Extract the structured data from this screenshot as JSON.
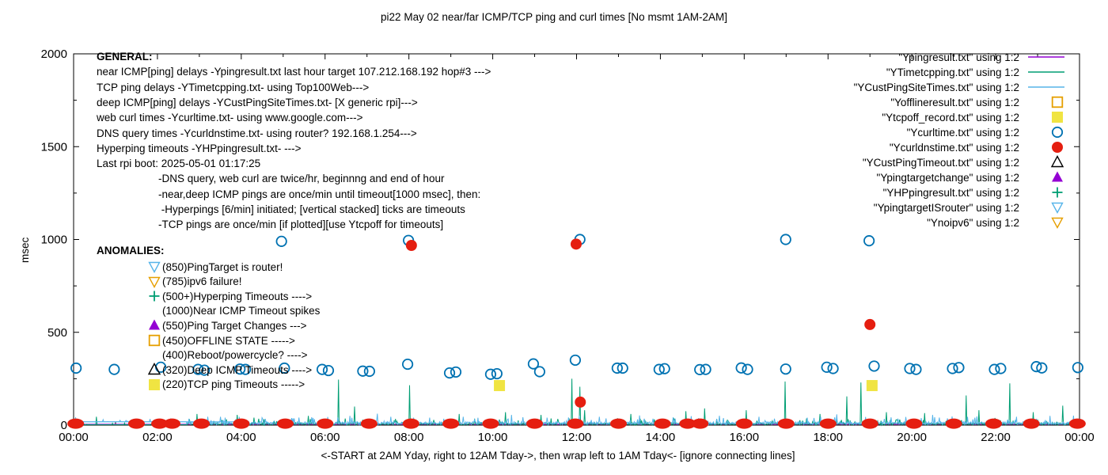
{
  "title": "pi22 May 02  near/far ICMP/TCP ping and curl times [No msmt 1AM-2AM]",
  "ylabel": "msec",
  "xlabel": "<-START at 2AM Yday, right to 12AM Tday->, then wrap left to 1AM Tday<- [ignore connecting lines]",
  "general": {
    "lines": [
      {
        "text": "GENERAL:",
        "bold": true,
        "indent": false
      },
      {
        "text": "near ICMP[ping] delays -Ypingresult.txt last hour target 107.212.168.192 hop#3 --->",
        "bold": false,
        "indent": false
      },
      {
        "text": "TCP ping delays -YTimetcpping.txt- using Top100Web--->",
        "bold": false,
        "indent": false
      },
      {
        "text": "deep ICMP[ping] delays -YCustPingSiteTimes.txt- [X generic rpi]--->",
        "bold": false,
        "indent": false
      },
      {
        "text": "web curl times -Ycurltime.txt- using www.google.com--->",
        "bold": false,
        "indent": false
      },
      {
        "text": "DNS query times -Ycurldnstime.txt- using router? 192.168.1.254--->",
        "bold": false,
        "indent": false
      },
      {
        "text": "Hyperping timeouts -YHPpingresult.txt- --->",
        "bold": false,
        "indent": false
      },
      {
        "text": "Last rpi boot: 2025-05-01 01:17:25",
        "bold": false,
        "indent": false
      },
      {
        "text": "-DNS query, web curl are twice/hr, beginnng and end of hour",
        "bold": false,
        "indent": true
      },
      {
        "text": "-near,deep ICMP pings are once/min until timeout[1000 msec], then:",
        "bold": false,
        "indent": true
      },
      {
        "text": " -Hyperpings [6/min] initiated; [vertical stacked] ticks are timeouts",
        "bold": false,
        "indent": true
      },
      {
        "text": "-TCP pings are once/min [if plotted][use Ytcpoff for timeouts]",
        "bold": false,
        "indent": true
      }
    ]
  },
  "anomalies": {
    "heading": "ANOMALIES:",
    "rows": [
      {
        "marker": "tri-down-open",
        "color": "#56b4e9",
        "text": "(850)PingTarget is router!"
      },
      {
        "marker": "tri-down-open",
        "color": "#e69f00",
        "text": "(785)ipv6 failure!"
      },
      {
        "marker": "plus",
        "color": "#009e73",
        "text": "(500+)Hyperping Timeouts ---->"
      },
      {
        "marker": "none",
        "color": "",
        "text": "(1000)Near ICMP Timeout spikes"
      },
      {
        "marker": "tri-up-filled",
        "color": "#9400d3",
        "text": "(550)Ping Target Changes --->"
      },
      {
        "marker": "square-open",
        "color": "#e69f00",
        "text": "(450)OFFLINE STATE ----->"
      },
      {
        "marker": "none",
        "color": "",
        "text": "(400)Reboot/powercycle? ---->"
      },
      {
        "marker": "tri-up-open",
        "color": "#000000",
        "text": "(320)Deep ICMP Timeouts ---->"
      },
      {
        "marker": "square-filled",
        "color": "#f0e442",
        "text": "(220)TCP ping Timeouts ----->"
      }
    ]
  },
  "legend": [
    {
      "label": "\"Ypingresult.txt\" using 1:2",
      "sample": "line",
      "color": "#9400d3"
    },
    {
      "label": "\"YTimetcpping.txt\" using 1:2",
      "sample": "line",
      "color": "#009e73"
    },
    {
      "label": "\"YCustPingSiteTimes.txt\" using 1:2",
      "sample": "line",
      "color": "#56b4e9"
    },
    {
      "label": "\"Yofflineresult.txt\" using 1:2",
      "sample": "square-open",
      "color": "#e69f00"
    },
    {
      "label": "\"Ytcpoff_record.txt\" using 1:2",
      "sample": "square-filled",
      "color": "#f0e442"
    },
    {
      "label": "\"Ycurltime.txt\" using 1:2",
      "sample": "circle-open",
      "color": "#0072b2"
    },
    {
      "label": "\"Ycurldnstime.txt\" using 1:2",
      "sample": "circle-filled",
      "color": "#e51e10"
    },
    {
      "label": "\"YCustPingTimeout.txt\" using 1:2",
      "sample": "tri-up-open",
      "color": "#000000"
    },
    {
      "label": "\"Ypingtargetchange\" using 1:2",
      "sample": "tri-up-filled",
      "color": "#9400d3"
    },
    {
      "label": "\"YHPpingresult.txt\" using 1:2",
      "sample": "plus",
      "color": "#009e73"
    },
    {
      "label": "\"YpingtargetISrouter\" using 1:2",
      "sample": "tri-down-open",
      "color": "#56b4e9"
    },
    {
      "label": "\"Ynoipv6\" using 1:2",
      "sample": "tri-down-open",
      "color": "#e69f00"
    }
  ],
  "chart_data": {
    "type": "line",
    "title": "pi22 May 02  near/far ICMP/TCP ping and curl times [No msmt 1AM-2AM]",
    "xlabel": "<-START at 2AM Yday, right to 12AM Tday->, then wrap left to 1AM Tday<- [ignore connecting lines]",
    "ylabel": "msec",
    "xlim": [
      0,
      24
    ],
    "ylim": [
      0,
      2000
    ],
    "grid": false,
    "legend_position": "top-right",
    "x_tick_hours": [
      0,
      2,
      4,
      6,
      8,
      10,
      12,
      14,
      16,
      18,
      20,
      22,
      24
    ],
    "x_tick_labels": [
      "00:00",
      "02:00",
      "04:00",
      "06:00",
      "08:00",
      "10:00",
      "12:00",
      "14:00",
      "16:00",
      "18:00",
      "20:00",
      "22:00",
      "00:00"
    ],
    "y_ticks": [
      0,
      500,
      1000,
      1500,
      2000
    ],
    "series": [
      {
        "name": "Ypingresult near ICMP ping delay",
        "color": "#9400d3",
        "style": "line-flat",
        "value": 5
      },
      {
        "name": "YTimetcpping TCP ping delay",
        "color": "#009e73",
        "style": "noise",
        "base": 1,
        "amp": 12,
        "gap": [
          0.25,
          2.7
        ],
        "gap_value": 2,
        "spikes": [
          [
            0.55,
            45
          ],
          [
            2.95,
            60
          ],
          [
            3.9,
            55
          ],
          [
            4.3,
            40
          ],
          [
            5.6,
            50
          ],
          [
            6.32,
            245
          ],
          [
            6.7,
            100
          ],
          [
            8.01,
            215
          ],
          [
            9.2,
            60
          ],
          [
            10.3,
            70
          ],
          [
            11.15,
            55
          ],
          [
            11.88,
            250
          ],
          [
            12.08,
            207
          ],
          [
            12.2,
            80
          ],
          [
            13.3,
            60
          ],
          [
            14.6,
            75
          ],
          [
            15.05,
            90
          ],
          [
            16.05,
            80
          ],
          [
            16.97,
            235
          ],
          [
            17.8,
            60
          ],
          [
            18.45,
            155
          ],
          [
            18.78,
            230
          ],
          [
            19.4,
            70
          ],
          [
            20.3,
            65
          ],
          [
            21.3,
            160
          ],
          [
            21.6,
            80
          ],
          [
            22.33,
            225
          ],
          [
            22.9,
            70
          ],
          [
            23.6,
            105
          ]
        ]
      },
      {
        "name": "YCustPingSiteTimes deep ICMP ping delay",
        "color": "#56b4e9",
        "style": "noise",
        "base": 3,
        "amp": 16,
        "gap": [
          0.25,
          2.7
        ],
        "gap_value": 18,
        "connect_line": {
          "from": 0.15,
          "to": 4.0,
          "value": 18
        },
        "spikes": [
          [
            3.2,
            45
          ],
          [
            4.5,
            40
          ],
          [
            5.2,
            38
          ],
          [
            6.6,
            50
          ],
          [
            7.25,
            62
          ],
          [
            8.5,
            40
          ],
          [
            9.3,
            45
          ],
          [
            10.45,
            55
          ],
          [
            11.3,
            40
          ],
          [
            12.55,
            45
          ],
          [
            13.5,
            52
          ],
          [
            14.3,
            42
          ],
          [
            15.5,
            38
          ],
          [
            16.35,
            45
          ],
          [
            17.5,
            40
          ],
          [
            18.2,
            58
          ],
          [
            19.5,
            42
          ],
          [
            20.5,
            55
          ],
          [
            21.5,
            40
          ],
          [
            22.5,
            45
          ],
          [
            23.3,
            50
          ]
        ]
      },
      {
        "name": "Ytcpoff_record TCP ping timeouts",
        "color": "#f0e442",
        "style": "points",
        "marker": "square-filled",
        "points": [
          [
            10.16,
            213
          ],
          [
            19.05,
            213
          ]
        ]
      },
      {
        "name": "Ycurltime web curl times",
        "color": "#0072b2",
        "style": "points",
        "marker": "circle-open",
        "points": [
          [
            0.06,
            307
          ],
          [
            0.97,
            300
          ],
          [
            2.08,
            312
          ],
          [
            2.97,
            300
          ],
          [
            3.12,
            296
          ],
          [
            3.97,
            302
          ],
          [
            4.1,
            300
          ],
          [
            4.96,
            990
          ],
          [
            5.03,
            307
          ],
          [
            5.93,
            300
          ],
          [
            6.08,
            294
          ],
          [
            6.9,
            291
          ],
          [
            7.06,
            290
          ],
          [
            7.97,
            328
          ],
          [
            7.99,
            995
          ],
          [
            8.97,
            281
          ],
          [
            9.12,
            286
          ],
          [
            9.95,
            274
          ],
          [
            10.1,
            277
          ],
          [
            10.97,
            330
          ],
          [
            11.12,
            288
          ],
          [
            11.97,
            350
          ],
          [
            12.08,
            1000
          ],
          [
            12.97,
            307
          ],
          [
            13.1,
            307
          ],
          [
            13.97,
            300
          ],
          [
            14.1,
            304
          ],
          [
            14.94,
            299
          ],
          [
            15.08,
            300
          ],
          [
            15.93,
            308
          ],
          [
            16.08,
            300
          ],
          [
            16.99,
            302
          ],
          [
            16.99,
            1000
          ],
          [
            17.97,
            312
          ],
          [
            18.12,
            305
          ],
          [
            18.98,
            993
          ],
          [
            19.1,
            318
          ],
          [
            19.95,
            305
          ],
          [
            20.1,
            300
          ],
          [
            20.97,
            305
          ],
          [
            21.12,
            310
          ],
          [
            21.97,
            300
          ],
          [
            22.12,
            305
          ],
          [
            22.97,
            315
          ],
          [
            23.1,
            308
          ],
          [
            23.96,
            310
          ]
        ]
      },
      {
        "name": "Ycurldnstime DNS query times",
        "color": "#e51e10",
        "style": "points",
        "marker": "circle-filled",
        "points": [
          [
            8.06,
            968
          ],
          [
            11.99,
            975
          ],
          [
            12.09,
            124
          ],
          [
            19.0,
            542
          ]
        ],
        "baseline_cluster_hours": [
          0.05,
          1.5,
          2.05,
          2.35,
          3.05,
          4.0,
          5.05,
          6.0,
          7.05,
          8.05,
          9.0,
          9.95,
          11.0,
          11.97,
          13.0,
          14.05,
          14.65,
          14.95,
          16.0,
          17.0,
          18.0,
          19.0,
          20.05,
          21.0,
          21.95,
          22.85,
          23.95
        ],
        "baseline_value": 8
      }
    ]
  }
}
